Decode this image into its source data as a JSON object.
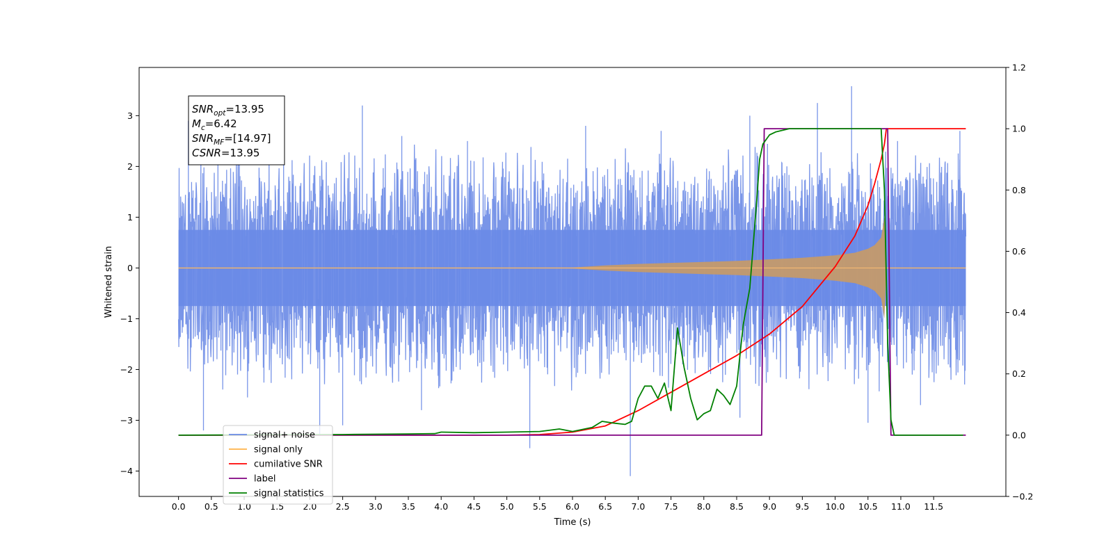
{
  "chart_data": {
    "type": "line",
    "xlabel": "Time (s)",
    "ylabel": "Whitened strain",
    "xlim": [
      -0.6,
      12.6
    ],
    "ylim": [
      -4.5,
      3.95
    ],
    "y2lim": [
      -0.2,
      1.2
    ],
    "grid": false,
    "legend_position": "lower-left",
    "xticks": [
      0.0,
      0.5,
      1.0,
      1.5,
      2.0,
      2.5,
      3.0,
      3.5,
      4.0,
      4.5,
      5.0,
      5.5,
      6.0,
      6.5,
      7.0,
      7.5,
      8.0,
      8.5,
      9.0,
      9.5,
      10.0,
      10.5,
      11.0,
      11.5
    ],
    "xtick_labels": [
      "0.0",
      "0.5",
      "1.0",
      "1.5",
      "2.0",
      "2.5",
      "3.0",
      "3.5",
      "4.0",
      "4.5",
      "5.0",
      "5.5",
      "6.0",
      "6.5",
      "7.0",
      "7.5",
      "8.0",
      "8.5",
      "9.0",
      "9.5",
      "10.0",
      "10.5",
      "11.0",
      "11.5"
    ],
    "yticks": [
      -4,
      -3,
      -2,
      -1,
      0,
      1,
      2,
      3
    ],
    "ytick_labels": [
      "−4",
      "−3",
      "−2",
      "−1",
      "0",
      "1",
      "2",
      "3"
    ],
    "y2ticks": [
      -0.2,
      0.0,
      0.2,
      0.4,
      0.6,
      0.8,
      1.0,
      1.2
    ],
    "y2tick_labels": [
      "−0.2",
      "0.0",
      "0.2",
      "0.4",
      "0.6",
      "0.8",
      "1.0",
      "1.2"
    ],
    "annotation": {
      "lines": [
        {
          "base": "SNR",
          "sub": "opt",
          "rest": "=13.95"
        },
        {
          "base": "M",
          "sub": "c",
          "rest": "=6.42"
        },
        {
          "base": "SNR",
          "sub": "MF",
          "rest": "=[14.97]"
        },
        {
          "base": "CSNR",
          "sub": "",
          "rest": "=13.95"
        }
      ]
    },
    "noise_envelope": {
      "x_range": [
        0.0,
        11.99
      ],
      "typical_upper": 1.2,
      "typical_lower": -1.2,
      "spikes": [
        {
          "x": 0.15,
          "y": 2.9
        },
        {
          "x": 0.38,
          "y": -3.2
        },
        {
          "x": 0.6,
          "y": 2.4
        },
        {
          "x": 1.05,
          "y": -2.55
        },
        {
          "x": 1.6,
          "y": 2.85
        },
        {
          "x": 2.15,
          "y": -3.3
        },
        {
          "x": 2.5,
          "y": -3.1
        },
        {
          "x": 2.8,
          "y": 3.2
        },
        {
          "x": 3.4,
          "y": 2.6
        },
        {
          "x": 3.7,
          "y": -2.8
        },
        {
          "x": 4.4,
          "y": 2.5
        },
        {
          "x": 5.35,
          "y": -3.55
        },
        {
          "x": 6.2,
          "y": 2.8
        },
        {
          "x": 6.88,
          "y": -4.1
        },
        {
          "x": 7.35,
          "y": 2.7
        },
        {
          "x": 8.55,
          "y": -2.95
        },
        {
          "x": 8.7,
          "y": 3.0
        },
        {
          "x": 9.73,
          "y": 3.25
        },
        {
          "x": 10.25,
          "y": 3.58
        },
        {
          "x": 10.5,
          "y": -3.05
        },
        {
          "x": 10.95,
          "y": 2.5
        },
        {
          "x": 11.3,
          "y": -2.7
        },
        {
          "x": 11.9,
          "y": 2.7
        }
      ]
    },
    "signal_envelope": {
      "x": [
        0.0,
        6.0,
        6.5,
        7.0,
        7.5,
        8.0,
        8.5,
        9.0,
        9.5,
        10.0,
        10.3,
        10.5,
        10.6,
        10.7,
        10.75,
        10.78,
        11.99
      ],
      "amplitude": [
        0.01,
        0.01,
        0.05,
        0.08,
        0.1,
        0.12,
        0.14,
        0.17,
        0.2,
        0.25,
        0.3,
        0.38,
        0.45,
        0.6,
        1.0,
        0.01,
        0.01
      ]
    },
    "series": [
      {
        "name": "signal+ noise",
        "axis": "left",
        "color": "#6a8ae6",
        "note": "high-frequency noise band, drawn as envelope"
      },
      {
        "name": "signal only",
        "axis": "left",
        "color": "#ffb347"
      },
      {
        "name": "cumilative SNR",
        "axis": "right",
        "color": "#ff0000",
        "x": [
          0.0,
          5.0,
          5.5,
          6.0,
          6.5,
          7.0,
          7.5,
          8.0,
          8.5,
          9.0,
          9.5,
          10.0,
          10.3,
          10.5,
          10.6,
          10.7,
          10.75,
          10.78,
          11.0,
          11.5,
          11.99
        ],
        "y": [
          0.0,
          0.0,
          0.002,
          0.01,
          0.03,
          0.08,
          0.14,
          0.2,
          0.26,
          0.33,
          0.42,
          0.55,
          0.65,
          0.75,
          0.82,
          0.9,
          0.95,
          1.0,
          1.0,
          1.0,
          1.0
        ]
      },
      {
        "name": "label",
        "axis": "right",
        "color": "#800080",
        "x": [
          0.0,
          8.88,
          8.92,
          10.8,
          10.85,
          11.99
        ],
        "y": [
          0.0,
          0.0,
          1.0,
          1.0,
          0.0,
          0.0
        ]
      },
      {
        "name": "signal statistics",
        "axis": "right",
        "color": "#008000",
        "x": [
          0.0,
          2.5,
          3.0,
          3.5,
          3.9,
          4.0,
          4.5,
          5.0,
          5.5,
          5.8,
          6.0,
          6.3,
          6.45,
          6.6,
          6.8,
          6.9,
          7.0,
          7.1,
          7.2,
          7.3,
          7.4,
          7.5,
          7.6,
          7.7,
          7.8,
          7.9,
          8.0,
          8.1,
          8.2,
          8.3,
          8.4,
          8.5,
          8.6,
          8.7,
          8.8,
          8.85,
          8.9,
          9.0,
          9.1,
          9.3,
          10.0,
          10.5,
          10.7,
          10.75,
          10.8,
          10.85,
          10.9,
          11.0,
          11.5,
          11.95
        ],
        "y": [
          0.0,
          0.002,
          0.003,
          0.004,
          0.005,
          0.01,
          0.008,
          0.01,
          0.012,
          0.02,
          0.012,
          0.025,
          0.045,
          0.04,
          0.035,
          0.045,
          0.12,
          0.16,
          0.16,
          0.12,
          0.17,
          0.08,
          0.35,
          0.22,
          0.12,
          0.05,
          0.07,
          0.08,
          0.15,
          0.13,
          0.1,
          0.16,
          0.36,
          0.48,
          0.75,
          0.9,
          0.95,
          0.98,
          0.99,
          1.0,
          1.0,
          1.0,
          1.0,
          0.8,
          0.3,
          0.05,
          0.0,
          0.0,
          0.0,
          0.0
        ]
      }
    ],
    "legend_entries": [
      {
        "label": "signal+ noise",
        "color": "#6a8ae6"
      },
      {
        "label": "signal only",
        "color": "#ffb347"
      },
      {
        "label": "cumilative SNR",
        "color": "#ff0000"
      },
      {
        "label": "label",
        "color": "#800080"
      },
      {
        "label": "signal statistics",
        "color": "#008000"
      }
    ]
  }
}
